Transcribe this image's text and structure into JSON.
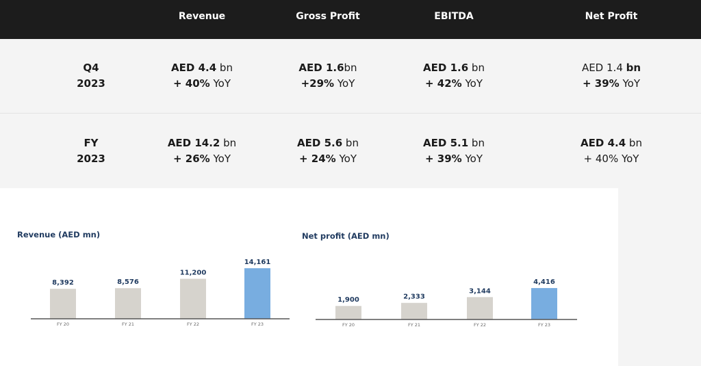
{
  "header": {
    "revenue": "Revenue",
    "gross_profit": "Gross Profit",
    "ebitda": "EBITDA",
    "net_profit": "Net Profit"
  },
  "rows": [
    {
      "label1": "Q4",
      "label2": "2023",
      "cells": [
        {
          "a1": "AED 4.4",
          "a2": " bn",
          "b1": "+ 40%",
          "b2": " YoY"
        },
        {
          "a1": "AED 1.6",
          "a2": "bn",
          "b1": "+29%",
          "b2": " YoY"
        },
        {
          "a1": "AED 1.6",
          "a2": " bn",
          "b1": "+ 42%",
          "b2": " YoY"
        },
        {
          "a1": "AED 1.4 ",
          "a2": "bn",
          "b1": "+ 39%",
          "b2": " YoY"
        }
      ]
    },
    {
      "label1": "FY",
      "label2": "2023",
      "cells": [
        {
          "a1": "AED 14.2",
          "a2": " bn",
          "b1": "+ 26%",
          "b2": " YoY"
        },
        {
          "a1": "AED 5.6",
          "a2": " bn",
          "b1": "+ 24%",
          "b2": " YoY"
        },
        {
          "a1": "AED 5.1",
          "a2": " bn",
          "b1": "+ 39%",
          "b2": " YoY"
        },
        {
          "a1": "AED 4.4",
          "a2": " bn",
          "b1": "",
          "b2": "+ 40% YoY"
        }
      ]
    }
  ],
  "colors": {
    "bar": "#d6d3cd",
    "highlight": "#78ade0",
    "title": "#1f3a5f"
  },
  "chart_data": [
    {
      "type": "bar",
      "title": "Revenue (AED mn)",
      "categories": [
        "FY 20",
        "FY 21",
        "FY 22",
        "FY 23"
      ],
      "values": [
        8392,
        8576,
        11200,
        14161
      ],
      "labels": [
        "8,392",
        "8,576",
        "11,200",
        "14,161"
      ],
      "highlight_index": 3
    },
    {
      "type": "bar",
      "title": "Net profit (AED mn)",
      "categories": [
        "FY 20",
        "FY 21",
        "FY 22",
        "FY 23"
      ],
      "values": [
        1900,
        2333,
        3144,
        4416
      ],
      "labels": [
        "1,900",
        "2,333",
        "3,144",
        "4,416"
      ],
      "highlight_index": 3
    }
  ]
}
